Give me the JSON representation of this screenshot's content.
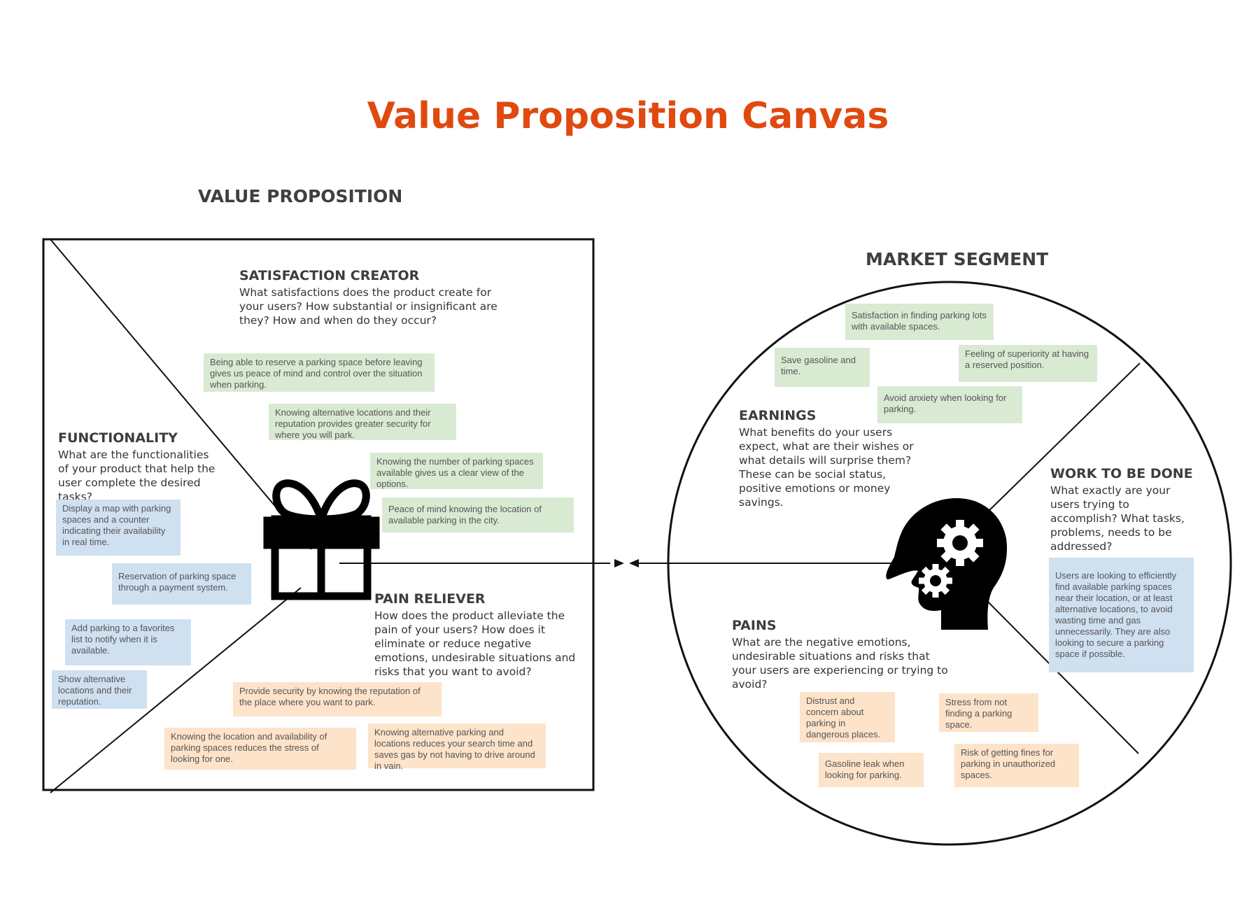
{
  "title": "Value Proposition Canvas",
  "value_proposition": {
    "heading": "VALUE PROPOSITION",
    "satisfaction_creator": {
      "title": "SATISFACTION CREATOR",
      "text": "What satisfactions does the product create for your users? How substantial or insignificant are they? How and when do they occur?",
      "notes": [
        "Being able to reserve a parking space before leaving gives us peace of mind and control over the situation when parking.",
        "Knowing alternative locations and their reputation provides greater security for where you will park.",
        "Knowing the number of parking spaces available gives us a clear view of the options.",
        "Peace of mind knowing the location of available parking in the city."
      ]
    },
    "functionality": {
      "title": "FUNCTIONALITY",
      "text": "What are the functionalities of your product that help the user complete the desired tasks?",
      "notes": [
        "Display a map with parking spaces and a counter indicating their availability in real time.",
        "Reservation of parking space through a payment system.",
        "Add parking to a favorites list to notify when it is available.",
        "Show alternative locations and their reputation."
      ]
    },
    "pain_reliever": {
      "title": "PAIN RELIEVER",
      "text": "How does the product alleviate the pain of your users? How does it eliminate or reduce negative emotions, undesirable situations and risks that you want to avoid?",
      "notes": [
        "Provide security by knowing the reputation of the place where you want to park.",
        "Knowing the location and availability of parking spaces reduces the stress of looking for one.",
        "Knowing alternative parking and locations reduces your search time and saves gas by not having to drive around in vain."
      ]
    }
  },
  "market_segment": {
    "heading": "MARKET SEGMENT",
    "earnings": {
      "title": "EARNINGS",
      "text": "What benefits do your users expect, what are their wishes or what details will surprise them? These can be social status, positive emotions or money savings.",
      "notes": [
        "Satisfaction in finding parking lots with available spaces.",
        "Save gasoline and time.",
        "Feeling of superiority at having a reserved position.",
        "Avoid anxiety when looking for parking."
      ]
    },
    "work_to_be_done": {
      "title": "WORK TO BE DONE",
      "text": "What exactly are your users trying to accomplish? What tasks, problems, needs to be addressed?",
      "notes": [
        "Users are looking to efficiently find available parking spaces near their location, or at least alternative locations, to avoid wasting time and gas unnecessarily. They are also looking to secure a parking space if possible."
      ]
    },
    "pains": {
      "title": "PAINS",
      "text": "What are the negative emotions, undesirable situations and risks that your users are experiencing or trying to avoid?",
      "notes": [
        "Distrust and concern about parking in dangerous places.",
        "Stress from not finding a parking space.",
        "Gasoline leak when looking for parking.",
        "Risk of getting fines for parking in unauthorized spaces."
      ]
    }
  },
  "colors": {
    "title": "#e0490f",
    "note_green": "#d9ead3",
    "note_blue": "#cfe0f1",
    "note_orange": "#fce3c9"
  },
  "icons": [
    "gift-icon",
    "head-gears-icon"
  ]
}
